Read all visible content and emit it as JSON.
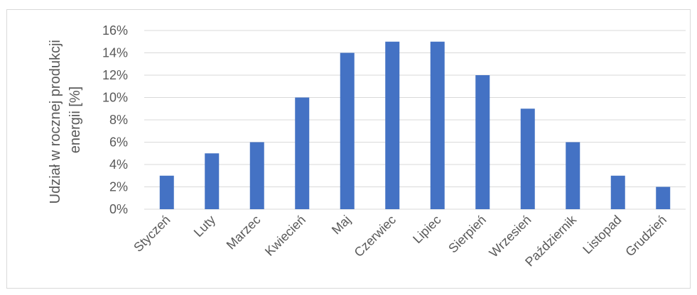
{
  "chart_data": {
    "type": "bar",
    "title": "",
    "xlabel": "",
    "ylabel_lines": [
      "Udział w rocznej produkcji",
      "energii [%]"
    ],
    "categories": [
      "Styczeń",
      "Luty",
      "Marzec",
      "Kwiecień",
      "Maj",
      "Czerwiec",
      "Lipiec",
      "Sierpień",
      "Wrzesień",
      "Październik",
      "Listopad",
      "Grudzień"
    ],
    "series": [
      {
        "values": [
          3,
          5,
          6,
          10,
          14,
          15,
          15,
          12,
          9,
          6,
          3,
          2
        ]
      }
    ],
    "ylim": [
      0,
      16
    ],
    "yticks": [
      0,
      2,
      4,
      6,
      8,
      10,
      12,
      14,
      16
    ],
    "ytick_labels": [
      "0%",
      "2%",
      "4%",
      "6%",
      "8%",
      "10%",
      "12%",
      "14%",
      "16%"
    ],
    "grid": true,
    "legend": "none",
    "colors": {
      "bar": "#4472c4",
      "grid": "#d9d9d9",
      "text": "#595959",
      "axis": "#d9d9d9"
    }
  }
}
